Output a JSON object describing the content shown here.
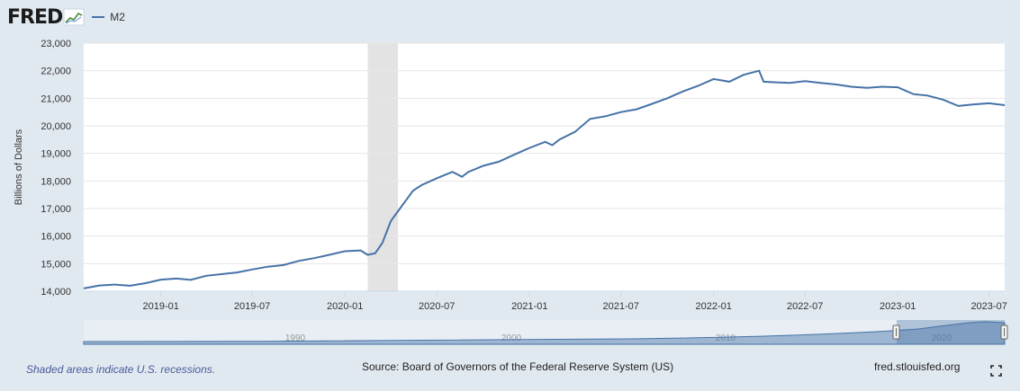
{
  "header": {
    "logo_text": "FRED",
    "legend_label": "M2",
    "series_color": "#4572a7"
  },
  "footer": {
    "recession_note": "Shaded areas indicate U.S. recessions.",
    "source": "Source: Board of Governors of the Federal Reserve System (US)",
    "site": "fred.stlouisfed.org"
  },
  "icons": {
    "logo_chart": "line-chart-icon",
    "fullscreen": "expand-icon"
  },
  "colors": {
    "line": "#4572a7",
    "recession": "#e3e3e3",
    "background": "#e1e9f0",
    "plot_background": "#ffffff",
    "navigator_fill": "#4572a7"
  },
  "navigator": {
    "labels": [
      "1990",
      "2000",
      "2010",
      "2020"
    ]
  },
  "chart_data": {
    "type": "line",
    "title": "",
    "xlabel": "",
    "ylabel": "Billions of Dollars",
    "ylim": [
      14000,
      23000
    ],
    "y_ticks": [
      14000,
      15000,
      16000,
      17000,
      18000,
      19000,
      20000,
      21000,
      22000,
      23000
    ],
    "x_ticks": [
      "2019-01",
      "2019-07",
      "2020-01",
      "2020-07",
      "2021-01",
      "2021-07",
      "2022-01",
      "2022-07",
      "2023-01",
      "2023-07"
    ],
    "x_range": [
      "2018-08-01",
      "2023-08-01"
    ],
    "grid": true,
    "legend_position": "top-left",
    "recessions": [
      {
        "start": "2020-02-15",
        "end": "2020-04-15"
      }
    ],
    "series": [
      {
        "name": "M2",
        "points": [
          [
            "2018-08-01",
            14100
          ],
          [
            "2018-09-01",
            14210
          ],
          [
            "2018-10-01",
            14240
          ],
          [
            "2018-11-01",
            14200
          ],
          [
            "2018-12-01",
            14290
          ],
          [
            "2019-01-01",
            14420
          ],
          [
            "2019-02-01",
            14460
          ],
          [
            "2019-03-01",
            14410
          ],
          [
            "2019-04-01",
            14560
          ],
          [
            "2019-05-01",
            14620
          ],
          [
            "2019-06-01",
            14680
          ],
          [
            "2019-07-01",
            14790
          ],
          [
            "2019-08-01",
            14890
          ],
          [
            "2019-09-01",
            14950
          ],
          [
            "2019-10-01",
            15100
          ],
          [
            "2019-11-01",
            15200
          ],
          [
            "2019-12-01",
            15320
          ],
          [
            "2020-01-01",
            15450
          ],
          [
            "2020-02-01",
            15480
          ],
          [
            "2020-02-15",
            15320
          ],
          [
            "2020-03-01",
            15380
          ],
          [
            "2020-03-15",
            15750
          ],
          [
            "2020-04-01",
            16550
          ],
          [
            "2020-04-15",
            16900
          ],
          [
            "2020-05-01",
            17300
          ],
          [
            "2020-05-15",
            17650
          ],
          [
            "2020-06-01",
            17850
          ],
          [
            "2020-07-01",
            18100
          ],
          [
            "2020-08-01",
            18330
          ],
          [
            "2020-08-20",
            18150
          ],
          [
            "2020-09-01",
            18320
          ],
          [
            "2020-10-01",
            18550
          ],
          [
            "2020-11-01",
            18700
          ],
          [
            "2020-12-01",
            18950
          ],
          [
            "2021-01-01",
            19200
          ],
          [
            "2021-02-01",
            19420
          ],
          [
            "2021-02-15",
            19300
          ],
          [
            "2021-03-01",
            19500
          ],
          [
            "2021-04-01",
            19780
          ],
          [
            "2021-05-01",
            20250
          ],
          [
            "2021-06-01",
            20350
          ],
          [
            "2021-07-01",
            20500
          ],
          [
            "2021-08-01",
            20600
          ],
          [
            "2021-09-01",
            20800
          ],
          [
            "2021-10-01",
            21000
          ],
          [
            "2021-11-01",
            21250
          ],
          [
            "2021-12-01",
            21450
          ],
          [
            "2022-01-01",
            21700
          ],
          [
            "2022-02-01",
            21600
          ],
          [
            "2022-03-01",
            21850
          ],
          [
            "2022-04-01",
            22000
          ],
          [
            "2022-04-10",
            21600
          ],
          [
            "2022-05-01",
            21580
          ],
          [
            "2022-06-01",
            21560
          ],
          [
            "2022-07-01",
            21620
          ],
          [
            "2022-08-01",
            21560
          ],
          [
            "2022-09-01",
            21500
          ],
          [
            "2022-10-01",
            21420
          ],
          [
            "2022-11-01",
            21380
          ],
          [
            "2022-12-01",
            21420
          ],
          [
            "2023-01-01",
            21400
          ],
          [
            "2023-02-01",
            21150
          ],
          [
            "2023-03-01",
            21100
          ],
          [
            "2023-04-01",
            20950
          ],
          [
            "2023-05-01",
            20720
          ],
          [
            "2023-06-01",
            20780
          ],
          [
            "2023-07-01",
            20820
          ],
          [
            "2023-08-01",
            20750
          ]
        ]
      }
    ]
  }
}
